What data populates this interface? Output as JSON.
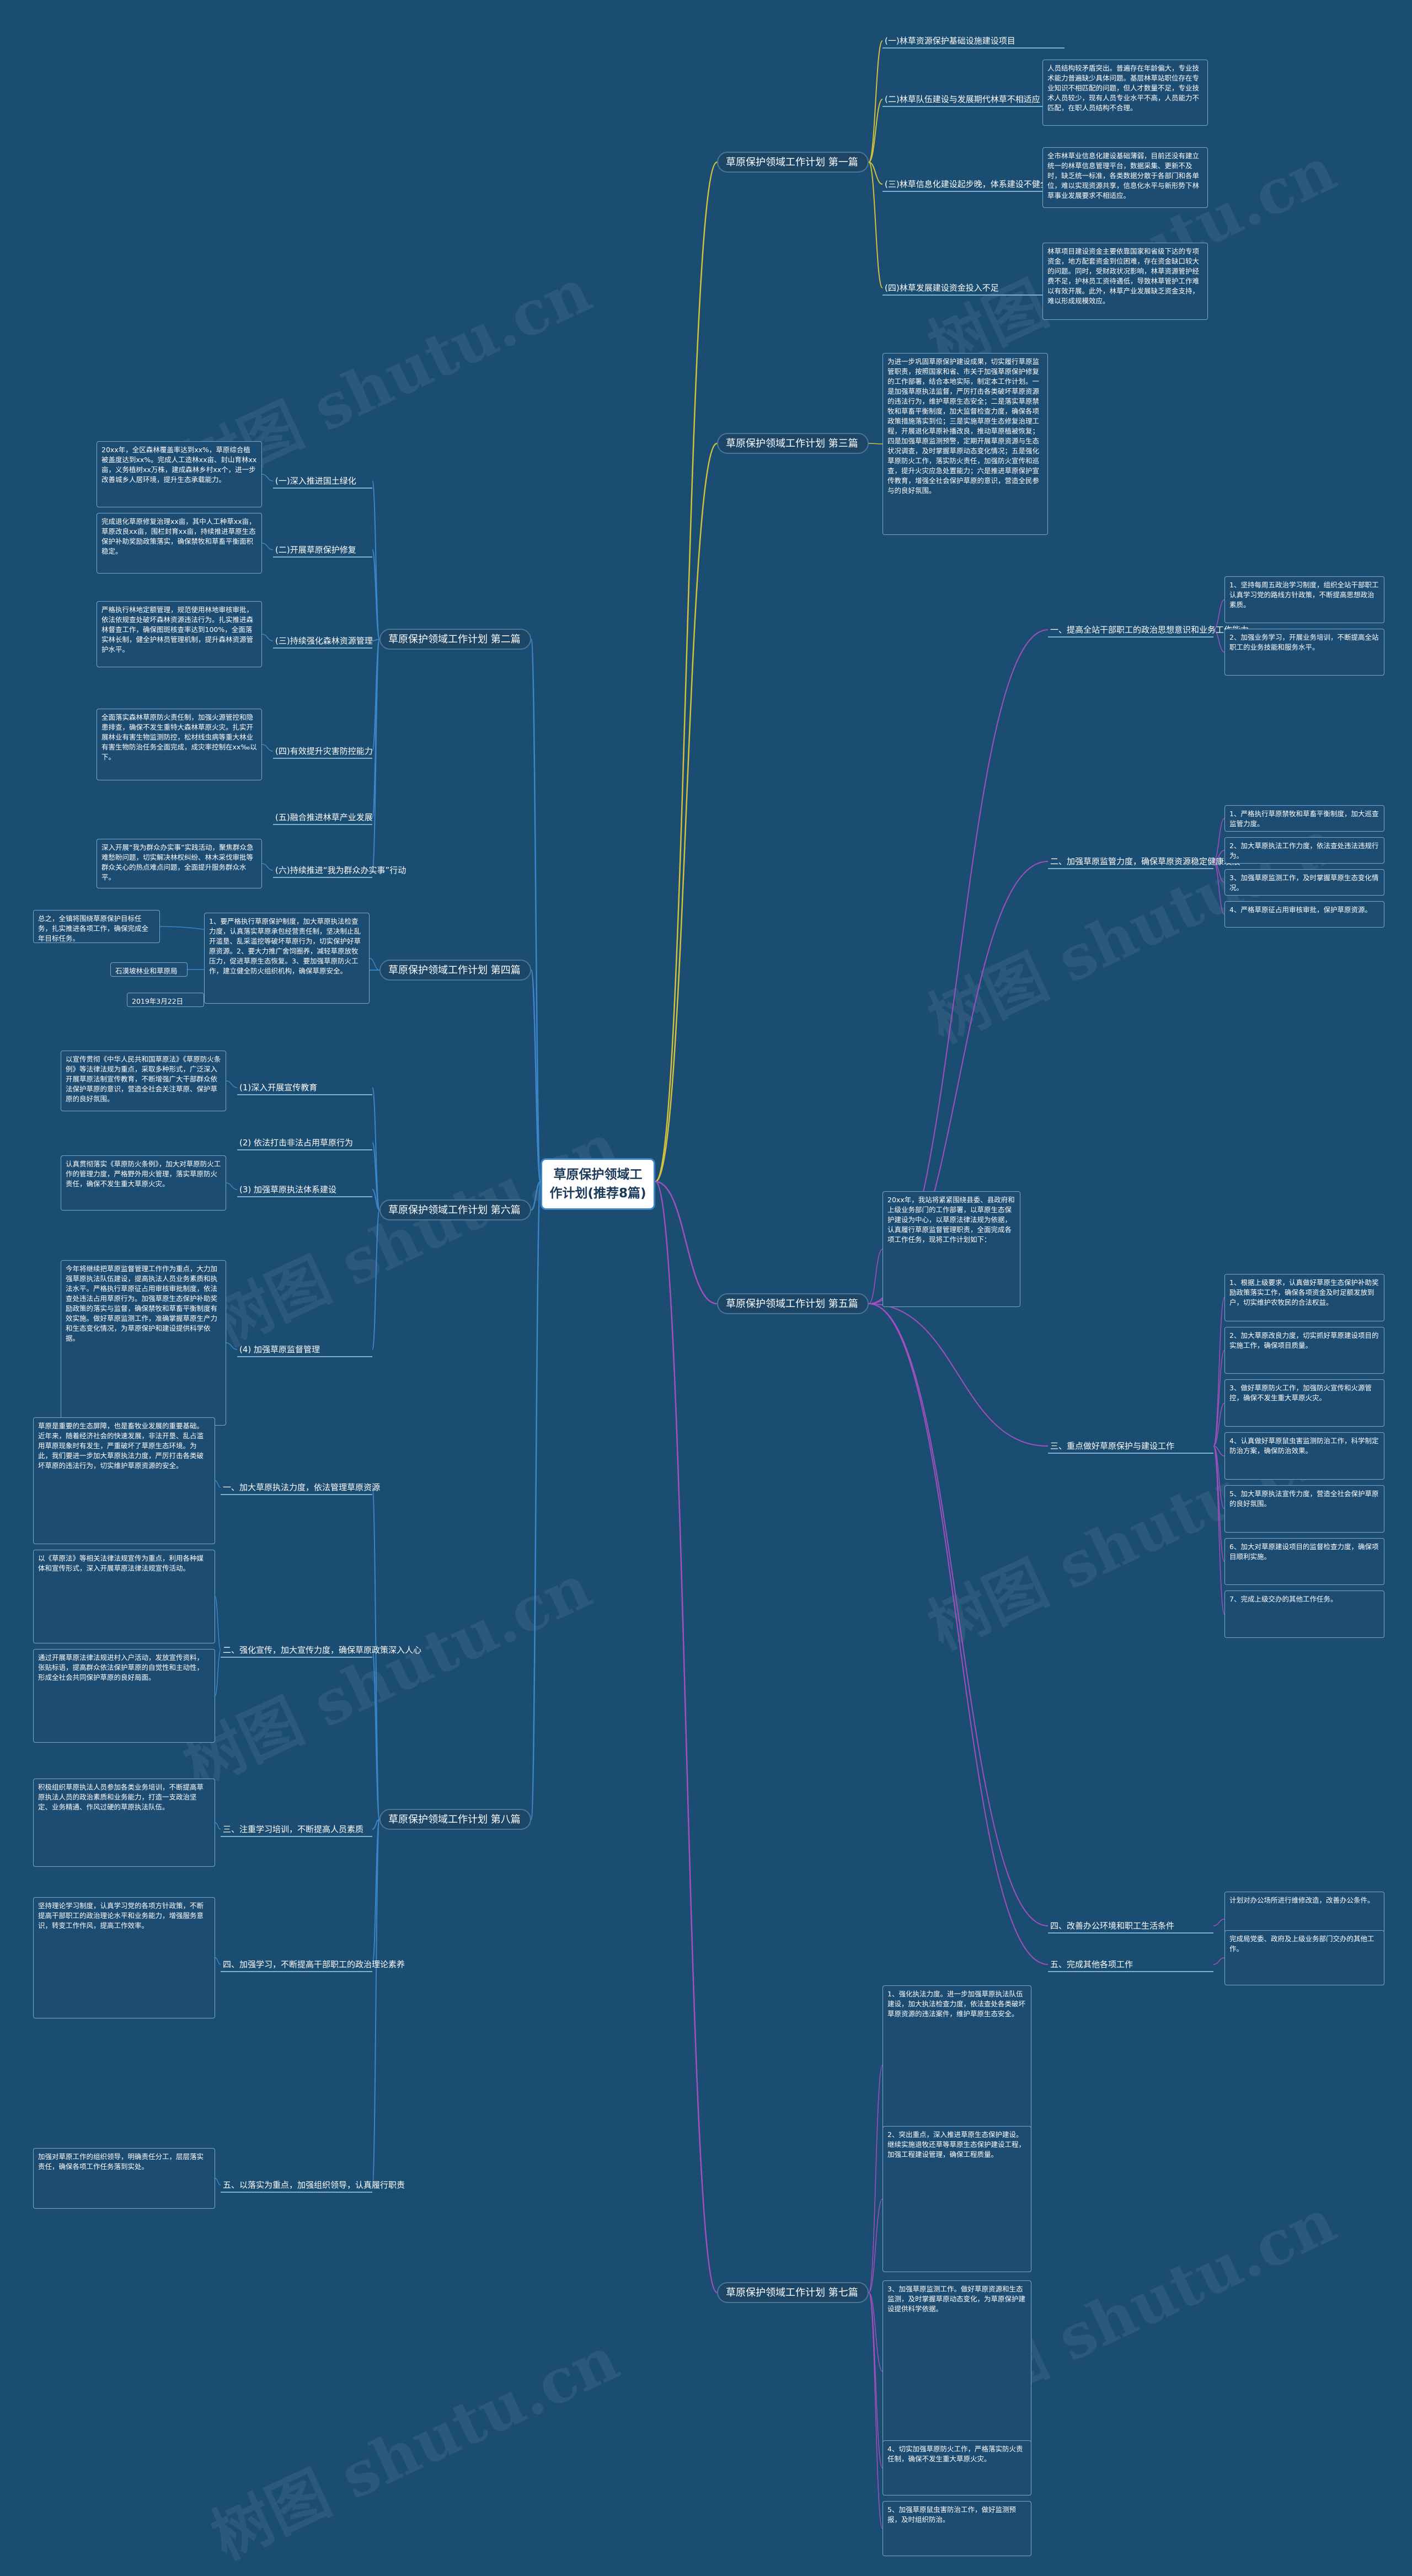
{
  "root": "草原保护领域工作计划(推荐8篇)",
  "watermark": "树图 shutu.cn",
  "colors": {
    "background": "#1b4c72",
    "branch_right": "#d4c23b",
    "branch_mid": "#a34fc0",
    "branch_left": "#3a86c8"
  },
  "topics": [
    {
      "label": "草原保护领域工作计划 第一篇",
      "subtopics": [
        {
          "label": "(一)林草资源保护基础设施建设项目"
        },
        {
          "label": "(二)林草队伍建设与发展期代林草不相适应",
          "leaves": [
            "人员结构较矛盾突出。普遍存在年龄偏大，专业技术能力普遍缺少具体问题。基层林草站职位存在专业知识不相匹配的问题，但人才数量不足，专业技术人员较少，现有人员专业水平不高，人员能力不匹配，在职人员结构不合理。"
          ]
        },
        {
          "label": "(三)林草信息化建设起步晚，体系建设不健全",
          "leaves": [
            "全市林草业信息化建设基础薄弱，目前还没有建立统一的林草信息管理平台，数据采集、更新不及时，缺乏统一标准，各类数据分散于各部门和各单位，难以实现资源共享，信息化水平与新形势下林草事业发展要求不相适应。"
          ]
        },
        {
          "label": "(四)林草发展建设资金投入不足",
          "leaves": [
            "林草项目建设资金主要依靠国家和省级下达的专项资金，地方配套资金到位困难，存在资金缺口较大的问题。同时，受财政状况影响，林草资源管护经费不足，护林员工资待遇低，导致林草管护工作难以有效开展。此外，林草产业发展缺乏资金支持，难以形成规模效应。"
          ]
        }
      ]
    },
    {
      "label": "草原保护领域工作计划 第三篇",
      "subtopics": [],
      "leaves": [
        "为进一步巩固草原保护建设成果，切实履行草原监管职责，按照国家和省、市关于加强草原保护修复的工作部署，结合本地实际，制定本工作计划。一是加强草原执法监督，严厉打击各类破坏草原资源的违法行为，维护草原生态安全；二是落实草原禁牧和草畜平衡制度，加大监督检查力度，确保各项政策措施落实到位；三是实施草原生态修复治理工程，开展退化草原补播改良，推动草原植被恢复；四是加强草原监测预警，定期开展草原资源与生态状况调查，及时掌握草原动态变化情况；五是强化草原防火工作，落实防火责任，加强防火宣传和巡查，提升火灾应急处置能力；六是推进草原保护宣传教育，增强全社会保护草原的意识，营造全民参与的良好氛围。"
      ]
    },
    {
      "label": "草原保护领域工作计划 第二篇",
      "subtopics": [
        {
          "label": "(一)深入推进国土绿化",
          "leaves": [
            "20xx年，全区森林覆盖率达到xx%，草原综合植被盖度达到xx%。完成人工造林xx亩、封山育林xx亩，义务植树xx万株，建成森林乡村xx个，进一步改善城乡人居环境，提升生态承载能力。"
          ]
        },
        {
          "label": "(二)开展草原保护修复",
          "leaves": [
            "完成退化草原修复治理xx亩，其中人工种草xx亩，草原改良xx亩，围栏封育xx亩，持续推进草原生态保护补助奖励政策落实，确保禁牧和草畜平衡面积稳定。"
          ]
        },
        {
          "label": "(三)持续强化森林资源管理",
          "leaves": [
            "严格执行林地定额管理，规范使用林地审核审批，依法依规查处破坏森林资源违法行为。扎实推进森林督查工作，确保图斑核查率达到100%，全面落实林长制，健全护林员管理机制，提升森林资源管护水平。"
          ]
        },
        {
          "label": "(四)有效提升灾害防控能力",
          "leaves": [
            "全面落实森林草原防火责任制，加强火源管控和隐患排查，确保不发生重特大森林草原火灾。扎实开展林业有害生物监测防控，松材线虫病等重大林业有害生物防治任务全面完成，成灾率控制在xx‰以下。"
          ]
        },
        {
          "label": "(五)融合推进林草产业发展"
        },
        {
          "label": "(六)持续推进“我为群众办实事”行动",
          "leaves": [
            "深入开展“我为群众办实事”实践活动，聚焦群众急难愁盼问题，切实解决林权纠纷、林木采伐审批等群众关心的热点难点问题，全面提升服务群众水平。"
          ]
        }
      ]
    },
    {
      "label": "草原保护领域工作计划 第四篇",
      "subtopics": [],
      "leaves": [
        "1、要严格执行草原保护制度，加大草原执法检查力度，认真落实草原承包经营责任制，坚决制止乱开滥垦、乱采滥挖等破坏草原行为，切实保护好草原资源。2、要大力推广舍饲圈养，减轻草原放牧压力，促进草原生态恢复。3、要加强草原防火工作，建立健全防火组织机构，确保草原安全。",
        "总之，全镇将围绕草原保护目标任务，扎实推进各项工作，确保完成全年目标任务。",
        "石漠坡林业和草原局",
        "2019年3月22日"
      ]
    },
    {
      "label": "草原保护领域工作计划 第六篇",
      "subtopics": [
        {
          "label": "(1)深入开展宣传教育",
          "leaves": [
            "以宣传贯彻《中华人民共和国草原法》《草原防火条例》等法律法规为重点，采取多种形式，广泛深入开展草原法制宣传教育，不断增强广大干部群众依法保护草原的意识，营造全社会关注草原、保护草原的良好氛围。"
          ]
        },
        {
          "label": "(2) 依法打击非法占用草原行为"
        },
        {
          "label": "(3) 加强草原执法体系建设",
          "leaves": [
            "认真贯彻落实《草原防火条例》，加大对草原防火工作的管理力度，严格野外用火管理，落实草原防火责任，确保不发生重大草原火灾。"
          ]
        },
        {
          "label": "(4) 加强草原监督管理",
          "leaves": [
            "今年将继续把草原监督管理工作作为重点，大力加强草原执法队伍建设，提高执法人员业务素质和执法水平。严格执行草原征占用审核审批制度，依法查处违法占用草原行为。加强草原生态保护补助奖励政策的落实与监督，确保禁牧和草畜平衡制度有效实施。做好草原监测工作，准确掌握草原生产力和生态变化情况，为草原保护和建设提供科学依据。"
          ]
        }
      ]
    },
    {
      "label": "草原保护领域工作计划 第五篇",
      "subtopics": [
        {
          "label": "一、提高全站干部职工的政治思想意识和业务工作能力",
          "leaves": [
            "1、坚持每周五政治学习制度，组织全站干部职工认真学习党的路线方针政策，不断提高思想政治素质。",
            "2、加强业务学习，开展业务培训，不断提高全站职工的业务技能和服务水平。"
          ]
        },
        {
          "label": "二、加强草原监管力度，确保草原资源稳定健康发展",
          "leaves": [
            "1、严格执行草原禁牧和草畜平衡制度，加大巡查监管力度。",
            "2、加大草原执法工作力度，依法查处违法违规行为。",
            "3、加强草原监测工作，及时掌握草原生态变化情况。",
            "4、严格草原征占用审核审批，保护草原资源。"
          ]
        },
        {
          "label": "三、重点做好草原保护与建设工作",
          "leaves": [
            "1、根据上级要求，认真做好草原生态保护补助奖励政策落实工作，确保各项资金及时足额发放到户，切实维护农牧民的合法权益。",
            "2、加大草原改良力度，切实抓好草原建设项目的实施工作，确保项目质量。",
            "3、做好草原防火工作，加强防火宣传和火源管控，确保不发生重大草原火灾。",
            "4、认真做好草原鼠虫害监测防治工作，科学制定防治方案，确保防治效果。",
            "5、加大草原执法宣传力度，营造全社会保护草原的良好氛围。",
            "6、加大对草原建设项目的监督检查力度，确保项目顺利实施。",
            "7、完成上级交办的其他工作任务。"
          ]
        },
        {
          "label": "四、改善办公环境和职工生活条件",
          "leaves": [
            "计划对办公场所进行维修改造，改善办公条件。"
          ]
        },
        {
          "label": "五、完成其他各项工作",
          "leaves": [
            "完成局党委、政府及上级业务部门交办的其他工作。"
          ]
        }
      ],
      "leaves": [
        "20xx年，我站将紧紧围绕县委、县政府和上级业务部门的工作部署，以草原生态保护建设为中心，以草原法律法规为依据，认真履行草原监督管理职责，全面完成各项工作任务，现将工作计划如下："
      ]
    },
    {
      "label": "草原保护领域工作计划 第八篇",
      "subtopics": [
        {
          "label": "一、加大草原执法力度，依法管理草原资源",
          "leaves": [
            "草原是重要的生态屏障，也是畜牧业发展的重要基础。近年来，随着经济社会的快速发展，非法开垦、乱占滥用草原现象时有发生，严重破坏了草原生态环境。为此，我们要进一步加大草原执法力度，严厉打击各类破坏草原的违法行为，切实维护草原资源的安全。"
          ]
        },
        {
          "label": "二、强化宣传，加大宣传力度，确保草原政策深入人心",
          "leaves": [
            "以《草原法》等相关法律法规宣传为重点，利用各种媒体和宣传形式，深入开展草原法律法规宣传活动。",
            "通过开展草原法律法规进村入户活动，发放宣传资料，张贴标语，提高群众依法保护草原的自觉性和主动性，形成全社会共同保护草原的良好局面。"
          ]
        },
        {
          "label": "三、注重学习培训，不断提高人员素质",
          "leaves": [
            "积极组织草原执法人员参加各类业务培训，不断提高草原执法人员的政治素质和业务能力，打造一支政治坚定、业务精通、作风过硬的草原执法队伍。"
          ]
        },
        {
          "label": "四、加强学习，不断提高干部职工的政治理论素养",
          "leaves": [
            "坚持理论学习制度，认真学习党的各项方针政策，不断提高干部职工的政治理论水平和业务能力，增强服务意识，转变工作作风，提高工作效率。"
          ]
        },
        {
          "label": "五、以落实为重点，加强组织领导，认真履行职责",
          "leaves": [
            "加强对草原工作的组织领导，明确责任分工，层层落实责任，确保各项工作任务落到实处。"
          ]
        }
      ]
    },
    {
      "label": "草原保护领域工作计划 第七篇",
      "subtopics": [],
      "leaves": [
        "1、强化执法力度。进一步加强草原执法队伍建设，加大执法检查力度，依法查处各类破坏草原资源的违法案件，维护草原生态安全。",
        "2、突出重点，深入推进草原生态保护建设。继续实施退牧还草等草原生态保护建设工程，加强工程建设管理，确保工程质量。",
        "3、加强草原监测工作。做好草原资源和生态监测，及时掌握草原动态变化，为草原保护建设提供科学依据。",
        "4、切实加强草原防火工作，严格落实防火责任制，确保不发生重大草原火灾。",
        "5、加强草原鼠虫害防治工作，做好监测预报，及时组织防治。"
      ]
    }
  ]
}
